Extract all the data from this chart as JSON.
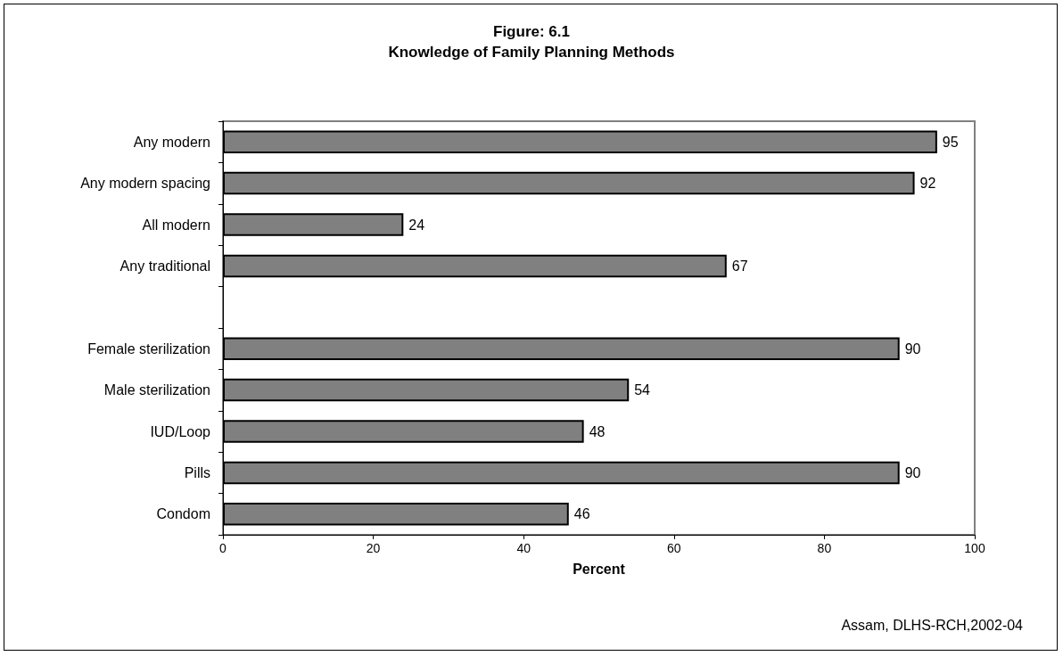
{
  "chart_data": {
    "type": "bar",
    "orientation": "horizontal",
    "title": "Figure: 6.1",
    "subtitle": "Knowledge of Family Planning Methods",
    "xlabel": "Percent",
    "categories": [
      "Any modern",
      "Any modern spacing",
      "All modern",
      "Any traditional",
      null,
      "Female sterilization",
      "Male sterilization",
      "IUD/Loop",
      "Pills",
      "Condom"
    ],
    "values": [
      95,
      92,
      24,
      67,
      null,
      90,
      54,
      48,
      90,
      46
    ],
    "color": "#808080",
    "xlim": [
      0,
      100
    ],
    "xticks": [
      0,
      20,
      40,
      60,
      80,
      100
    ],
    "grid": false,
    "data_labels": true,
    "annotations": [
      "Assam, DLHS-RCH,2002-04"
    ]
  }
}
